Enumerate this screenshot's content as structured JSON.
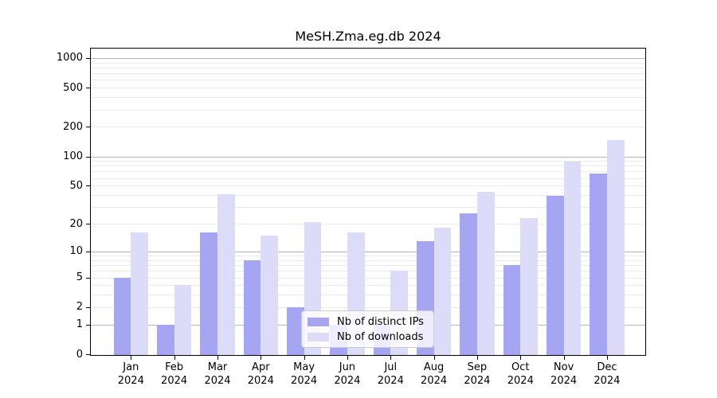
{
  "chart_data": {
    "type": "bar",
    "title": "MeSH.Zma.eg.db 2024",
    "categories": [
      "Jan",
      "Feb",
      "Mar",
      "Apr",
      "May",
      "Jun",
      "Jul",
      "Aug",
      "Sep",
      "Oct",
      "Nov",
      "Dec"
    ],
    "x_tick_year": "2024",
    "series": [
      {
        "name": "Nb of distinct IPs",
        "color": "#a5a5f2",
        "values": [
          5,
          1,
          16,
          8,
          2,
          1,
          1,
          13,
          26,
          7,
          39,
          67
        ]
      },
      {
        "name": "Nb of downloads",
        "color": "#dcdcf8",
        "values": [
          16,
          4,
          41,
          15,
          21,
          16,
          6,
          18,
          43,
          23,
          88,
          147
        ]
      }
    ],
    "y_scale": "log10(1+x)",
    "y_ticks": [
      0,
      1,
      2,
      5,
      10,
      20,
      50,
      100,
      200,
      500,
      1000
    ],
    "ylim": [
      0,
      1270
    ],
    "grid": true,
    "legend_position": "lower center",
    "colors": {
      "axis": "#000000",
      "major_grid": "#b5b5b5",
      "minor_grid": "#ebebeb",
      "legend_border": "#cccccc"
    }
  }
}
